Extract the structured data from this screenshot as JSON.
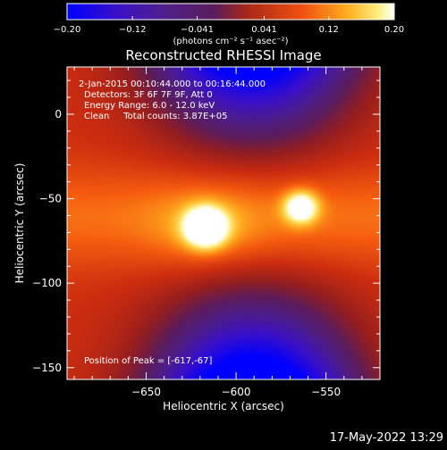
{
  "chart_data": {
    "type": "heatmap",
    "title": "Reconstructed RHESSI Image",
    "xlabel": "Heliocentric X (arcsec)",
    "ylabel": "Heliocentric Y (arcsec)",
    "xlim": [
      -694,
      -520
    ],
    "ylim": [
      -157,
      28
    ],
    "xticks": [
      -650,
      -600,
      -550
    ],
    "xtick_labels": [
      "−650",
      "−600",
      "−550"
    ],
    "yticks": [
      0,
      -50,
      -100,
      -150
    ],
    "ytick_labels": [
      "0",
      "−50",
      "−100",
      "−150"
    ],
    "colorbar": {
      "range": [
        -0.2,
        0.2
      ],
      "ticks": [
        -0.2,
        -0.12,
        -0.041,
        0.041,
        0.12,
        0.2
      ],
      "tick_labels": [
        "−0.20",
        "−0.12",
        "−0.041",
        "0.041",
        "0.12",
        "0.20"
      ],
      "unit": "(photons cm⁻² s⁻¹ asec⁻²)",
      "colormap": "blue-purple-red-orange-yellow-white"
    },
    "sources": [
      {
        "x": -617,
        "y": -67,
        "peak": 0.2
      },
      {
        "x": -564,
        "y": -55,
        "peak": 0.15
      }
    ],
    "annotations": [
      "2-Jan-2015 00:10:44.000 to 00:16:44.000",
      "Detectors: 3F 6F 7F 9F, Att 0",
      "Energy Range: 6.0 - 12.0 keV",
      "Clean     Total counts: 3.87E+05"
    ],
    "peak_label": "Position of Peak = [-617,-67]"
  },
  "footer": {
    "timestamp": "17-May-2022 13:29"
  },
  "colors": {
    "background": "#000000",
    "text": "#ffffff"
  }
}
